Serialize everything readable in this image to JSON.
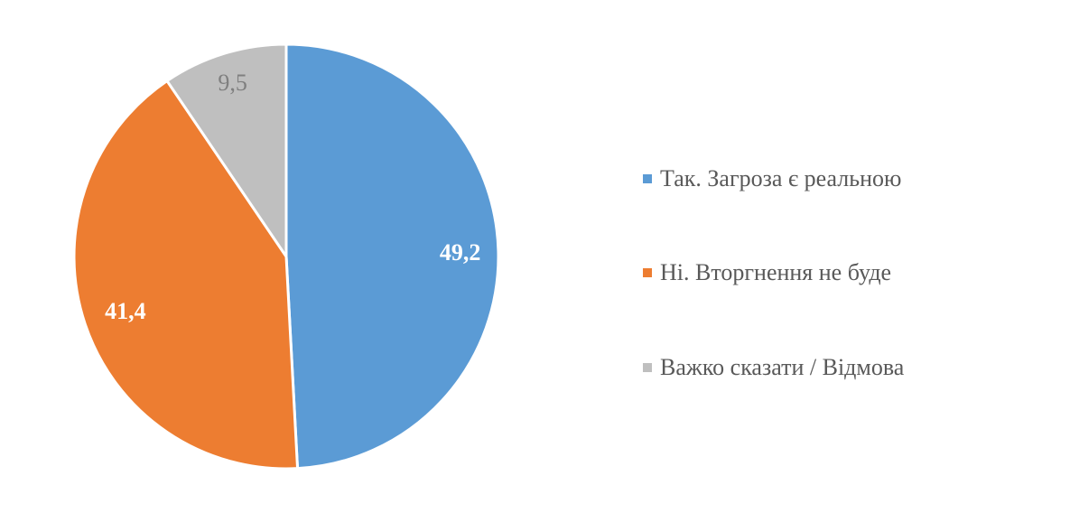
{
  "chart_data": {
    "type": "pie",
    "title": "",
    "categories": [
      "Так. Загроза є реальною",
      "Ні. Вторгнення не буде",
      "Важко сказати / Відмова"
    ],
    "values": [
      49.2,
      41.4,
      9.5
    ],
    "value_labels": [
      "49,2",
      "41,4",
      "9,5"
    ],
    "colors": [
      "#5B9BD5",
      "#ED7D31",
      "#BFBFBF"
    ],
    "label_colors": [
      "#FFFFFF",
      "#FFFFFF",
      "#7F7F7F"
    ],
    "start_angle": "top, clockwise",
    "legend_position": "right"
  }
}
